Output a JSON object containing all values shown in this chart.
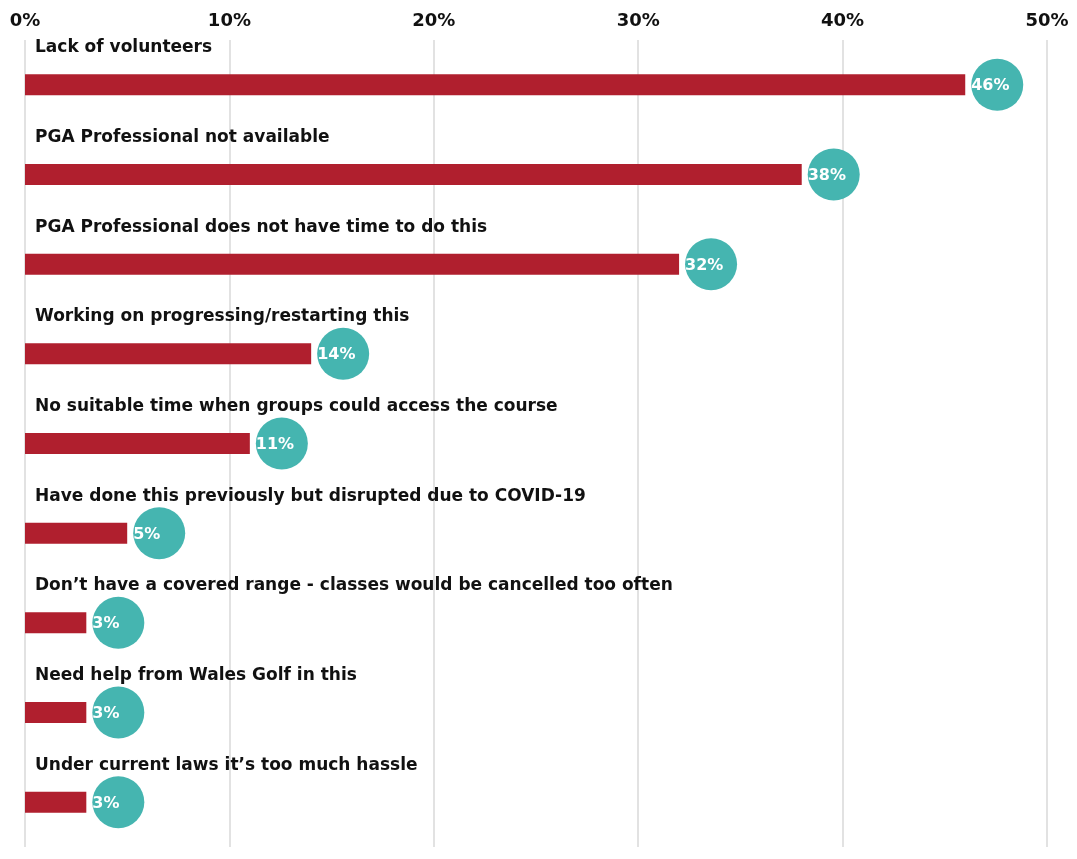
{
  "chart_data": {
    "type": "bar",
    "orientation": "horizontal",
    "categories": [
      "Lack of volunteers",
      "PGA Professional not available",
      "PGA Professional does not have time to do this",
      "Working on progressing/restarting this",
      "No suitable time when groups could access the course",
      "Have done this previously but disrupted due to COVID-19",
      "Don’t have a covered range - classes would be cancelled too often",
      "Need help from Wales Golf in this",
      "Under current laws it’s too much hassle"
    ],
    "values": [
      46,
      38,
      32,
      14,
      11,
      5,
      3,
      3,
      3
    ],
    "value_labels": [
      "46%",
      "38%",
      "32%",
      "14%",
      "11%",
      "5%",
      "3%",
      "3%",
      "3%"
    ],
    "color": "#b01f2e",
    "xlim": [
      0,
      50
    ],
    "xticks": [
      {
        "value": 0,
        "label": "0%"
      },
      {
        "value": 10,
        "label": "10%"
      },
      {
        "value": 20,
        "label": "20%"
      },
      {
        "value": 30,
        "label": "30%"
      },
      {
        "value": 40,
        "label": "40%"
      },
      {
        "value": 50,
        "label": "50%"
      }
    ],
    "grid": "x"
  }
}
